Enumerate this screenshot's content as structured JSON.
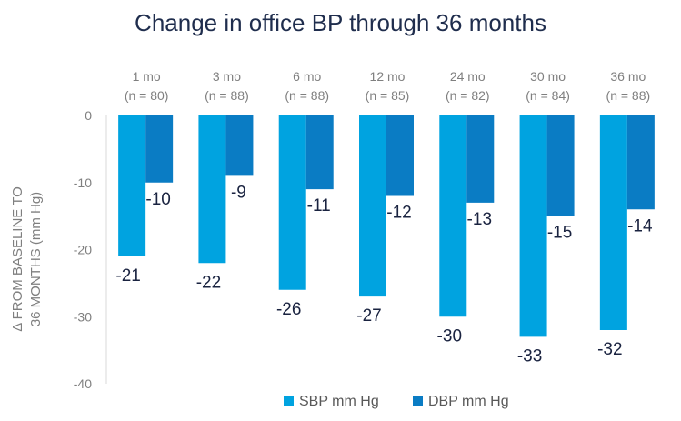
{
  "chart_data": {
    "type": "bar",
    "title": "Change in office BP through 36 months",
    "ylabel_lines": [
      "Δ FROM BASELINE TO",
      "36 MONTHS (mm Hg)"
    ],
    "categories": [
      "1 mo",
      "3 mo",
      "6 mo",
      "12 mo",
      "24 mo",
      "30 mo",
      "36 mo"
    ],
    "category_sublabels": [
      "(n = 80)",
      "(n = 88)",
      "(n = 88)",
      "(n = 85)",
      "(n = 82)",
      "(n = 84)",
      "(n = 88)"
    ],
    "series": [
      {
        "name": "SBP mm Hg",
        "color": "#00a3e0",
        "values": [
          -21,
          -22,
          -26,
          -27,
          -30,
          -33,
          -32
        ]
      },
      {
        "name": "DBP mm Hg",
        "color": "#0a7cc4",
        "values": [
          -10,
          -9,
          -11,
          -12,
          -13,
          -15,
          -14
        ]
      }
    ],
    "ylim": [
      -40,
      0
    ],
    "yticks": [
      0,
      -10,
      -20,
      -30,
      -40
    ],
    "grid": false,
    "legend": "bottom"
  }
}
